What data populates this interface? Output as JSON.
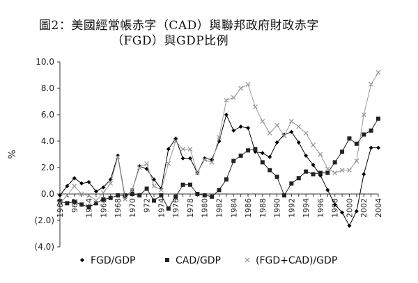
{
  "chart_data": {
    "type": "line",
    "title_line1": "圖2：美國經常帳赤字（CAD）與聯邦政府財政赤字",
    "title_line2": "（FGD）與GDP比例",
    "xlabel": "",
    "ylabel": "%",
    "ylim": [
      -4,
      10
    ],
    "y_ticks": [
      "10.0",
      "8.0",
      "6.0",
      "4.0",
      "2.0",
      "0.0",
      "(2.0)",
      "(4.0)"
    ],
    "x": [
      1960,
      1961,
      1962,
      1963,
      1964,
      1965,
      1966,
      1967,
      1968,
      1969,
      1970,
      1971,
      1972,
      1973,
      1974,
      1975,
      1976,
      1977,
      1978,
      1979,
      1980,
      1981,
      1982,
      1983,
      1984,
      1985,
      1986,
      1987,
      1988,
      1989,
      1990,
      1991,
      1992,
      1993,
      1994,
      1995,
      1996,
      1997,
      1998,
      1999,
      2000,
      2001,
      2002,
      2003,
      2004
    ],
    "x_tick_labels": [
      "1960",
      "962",
      "1964",
      "1966",
      "1968",
      "1970",
      "972",
      "1974",
      "1976",
      "1978",
      "1980",
      "1982",
      "1984",
      "1986",
      "1988",
      "1990",
      "1992",
      "1994",
      "1996",
      "1998",
      "2000",
      "2002",
      "2004"
    ],
    "grid": false,
    "legend_position": "bottom",
    "series": [
      {
        "name": "FGD/GDP",
        "marker": "diamond",
        "color": "#000000",
        "values": [
          -0.1,
          0.6,
          1.2,
          0.8,
          0.9,
          0.2,
          0.5,
          1.1,
          2.9,
          -0.3,
          0.3,
          2.1,
          1.9,
          1.1,
          0.4,
          3.4,
          4.2,
          2.7,
          2.7,
          1.6,
          2.7,
          2.6,
          4.0,
          6.0,
          4.8,
          5.1,
          5.0,
          3.2,
          3.1,
          2.8,
          3.9,
          4.5,
          4.7,
          3.9,
          2.9,
          2.2,
          1.4,
          0.3,
          -0.8,
          -1.4,
          -2.4,
          -1.3,
          1.5,
          3.5,
          3.5
        ]
      },
      {
        "name": "CAD/GDP",
        "marker": "square",
        "color": "#222222",
        "values": [
          -0.6,
          -0.7,
          -0.6,
          -0.8,
          -1.0,
          -0.7,
          -0.4,
          -0.3,
          -0.1,
          -0.1,
          0.0,
          -0.1,
          0.4,
          -0.5,
          -0.1,
          -1.1,
          -0.2,
          0.7,
          0.7,
          0.0,
          -0.1,
          -0.2,
          0.3,
          1.1,
          2.5,
          2.9,
          3.3,
          3.4,
          2.4,
          1.8,
          1.3,
          -0.1,
          0.8,
          1.2,
          1.7,
          1.5,
          1.6,
          1.6,
          2.4,
          3.2,
          4.2,
          3.8,
          4.5,
          4.8,
          5.7
        ]
      },
      {
        "name": "(FGD+CAD)/GDP",
        "marker": "x",
        "color": "#9a9a9a",
        "values": [
          -0.7,
          -0.1,
          0.6,
          0.0,
          -0.1,
          -0.5,
          0.1,
          0.8,
          2.8,
          -0.4,
          0.3,
          2.0,
          2.3,
          0.6,
          0.3,
          2.3,
          4.0,
          3.4,
          3.4,
          1.6,
          2.6,
          2.4,
          4.3,
          7.1,
          7.3,
          8.0,
          8.3,
          6.6,
          5.5,
          4.6,
          5.2,
          4.4,
          5.5,
          5.1,
          4.6,
          3.7,
          3.0,
          1.9,
          1.6,
          1.8,
          1.8,
          2.5,
          6.0,
          8.3,
          9.2
        ]
      }
    ]
  }
}
